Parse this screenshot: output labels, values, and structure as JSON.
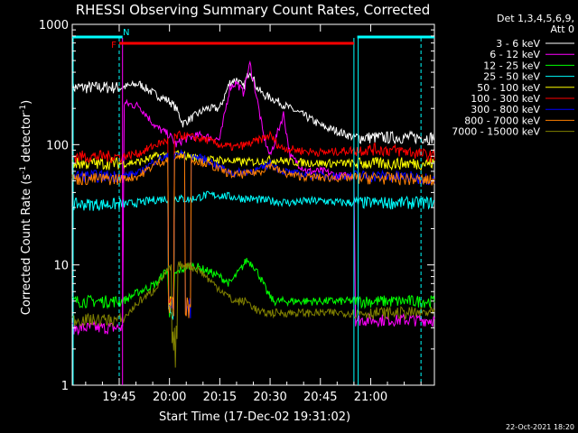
{
  "chart_data": {
    "type": "line",
    "title": "RHESSI Observing Summary Count Rates, Corrected",
    "xlabel": "Start Time (17-Dec-02 19:31:02)",
    "ylabel_main": "Corrected Count Rate (s",
    "ylabel_sup": "-1",
    "ylabel_tail": " detector",
    "ylabel_sup2": "-1",
    "ylabel_end": ")",
    "y_scale": "log",
    "ylim": [
      1,
      1000
    ],
    "xlim_minutes": [
      0,
      108
    ],
    "x_ticks": [
      {
        "m": 14,
        "label": "19:45"
      },
      {
        "m": 29,
        "label": "20:00"
      },
      {
        "m": 44,
        "label": "20:15"
      },
      {
        "m": 59,
        "label": "20:30"
      },
      {
        "m": 74,
        "label": "20:45"
      },
      {
        "m": 89,
        "label": "21:00"
      }
    ],
    "y_ticks": [
      {
        "v": 1,
        "label": "1"
      },
      {
        "v": 10,
        "label": "10"
      },
      {
        "v": 100,
        "label": "100"
      },
      {
        "v": 1000,
        "label": "1000"
      }
    ],
    "legend": {
      "placement": "right",
      "header1": "Det 1,3,4,5,6,9,",
      "header2": "Att 0"
    },
    "flags": [
      {
        "label": "F",
        "color": "#ff0000",
        "start": 14,
        "end": 84
      },
      {
        "label": "N",
        "color": "#00ffff",
        "start": 0,
        "end": 108,
        "gap_start": 15,
        "gap_end": 85
      }
    ],
    "boundaries": [
      {
        "m": 15,
        "color": "#ff00ff"
      },
      {
        "m": 84,
        "color": "#00ffff"
      }
    ],
    "dashed_lines": [
      {
        "m": 14,
        "color": "#00ffff"
      },
      {
        "m": 104,
        "color": "#00ffff"
      }
    ],
    "solid_lines": [
      {
        "m": 0,
        "color": "#00ffff"
      },
      {
        "m": 85,
        "color": "#00ffff"
      }
    ],
    "series": [
      {
        "name": "3 - 6 keV",
        "color": "#ffffff",
        "points": [
          [
            15,
            300
          ],
          [
            20,
            320
          ],
          [
            25,
            260
          ],
          [
            29,
            230
          ],
          [
            31,
            200
          ],
          [
            33,
            150
          ],
          [
            36,
            170
          ],
          [
            40,
            200
          ],
          [
            44,
            200
          ],
          [
            47,
            330
          ],
          [
            49,
            350
          ],
          [
            51,
            300
          ],
          [
            53,
            420
          ],
          [
            55,
            300
          ],
          [
            57,
            260
          ],
          [
            60,
            240
          ],
          [
            65,
            200
          ],
          [
            70,
            170
          ],
          [
            75,
            140
          ],
          [
            79,
            130
          ],
          [
            84,
            115
          ]
        ]
      },
      {
        "name": "6 - 12 keV",
        "color": "#ff00ff",
        "points": [
          [
            0,
            3
          ],
          [
            15,
            3
          ],
          [
            15.5,
            220
          ],
          [
            20,
            210
          ],
          [
            25,
            140
          ],
          [
            29,
            120
          ],
          [
            31,
            100
          ],
          [
            33,
            110
          ],
          [
            38,
            120
          ],
          [
            44,
            110
          ],
          [
            47,
            300
          ],
          [
            49,
            330
          ],
          [
            51,
            270
          ],
          [
            53,
            470
          ],
          [
            55,
            250
          ],
          [
            57,
            120
          ],
          [
            59,
            80
          ],
          [
            61,
            120
          ],
          [
            63,
            180
          ],
          [
            65,
            80
          ],
          [
            70,
            60
          ],
          [
            75,
            60
          ],
          [
            79,
            55
          ],
          [
            84,
            55
          ],
          [
            84.5,
            3.5
          ],
          [
            108,
            3.5
          ]
        ]
      },
      {
        "name": "12 - 25 keV",
        "color": "#00ff00",
        "points": [
          [
            0,
            5
          ],
          [
            15,
            5
          ],
          [
            20,
            6
          ],
          [
            25,
            7
          ],
          [
            28,
            9
          ],
          [
            30,
            8
          ],
          [
            32,
            9
          ],
          [
            36,
            10
          ],
          [
            40,
            9
          ],
          [
            44,
            8
          ],
          [
            47,
            7
          ],
          [
            50,
            9
          ],
          [
            52,
            11
          ],
          [
            54,
            10
          ],
          [
            56,
            8
          ],
          [
            58,
            6
          ],
          [
            60,
            5
          ],
          [
            65,
            5
          ],
          [
            70,
            5
          ],
          [
            75,
            5
          ],
          [
            84,
            5
          ],
          [
            90,
            5
          ],
          [
            108,
            5
          ]
        ]
      },
      {
        "name": "25 - 50 keV",
        "color": "#00ffff",
        "points": [
          [
            0,
            32
          ],
          [
            15,
            32
          ],
          [
            20,
            33
          ],
          [
            25,
            35
          ],
          [
            30,
            36
          ],
          [
            35,
            35
          ],
          [
            40,
            38
          ],
          [
            44,
            38
          ],
          [
            47,
            37
          ],
          [
            50,
            36
          ],
          [
            55,
            35
          ],
          [
            60,
            34
          ],
          [
            65,
            33
          ],
          [
            70,
            34
          ],
          [
            75,
            34
          ],
          [
            80,
            33
          ],
          [
            84,
            33
          ],
          [
            90,
            33
          ],
          [
            100,
            33
          ],
          [
            108,
            33
          ]
        ]
      },
      {
        "name": "50 - 100 keV",
        "color": "#ffff00",
        "points": [
          [
            0,
            70
          ],
          [
            15,
            70
          ],
          [
            20,
            72
          ],
          [
            25,
            80
          ],
          [
            30,
            85
          ],
          [
            35,
            80
          ],
          [
            40,
            75
          ],
          [
            44,
            75
          ],
          [
            50,
            72
          ],
          [
            55,
            72
          ],
          [
            58,
            75
          ],
          [
            62,
            74
          ],
          [
            65,
            72
          ],
          [
            70,
            71
          ],
          [
            75,
            70
          ],
          [
            84,
            70
          ],
          [
            90,
            70
          ],
          [
            100,
            70
          ],
          [
            108,
            70
          ]
        ]
      },
      {
        "name": "100 - 300 keV",
        "color": "#ff0000",
        "points": [
          [
            0,
            80
          ],
          [
            15,
            80
          ],
          [
            20,
            85
          ],
          [
            25,
            100
          ],
          [
            29,
            110
          ],
          [
            32,
            120
          ],
          [
            36,
            115
          ],
          [
            40,
            110
          ],
          [
            44,
            100
          ],
          [
            48,
            95
          ],
          [
            52,
            100
          ],
          [
            56,
            110
          ],
          [
            59,
            120
          ],
          [
            62,
            95
          ],
          [
            65,
            92
          ],
          [
            70,
            88
          ],
          [
            75,
            86
          ],
          [
            84,
            90
          ],
          [
            90,
            92
          ],
          [
            100,
            88
          ],
          [
            108,
            80
          ]
        ]
      },
      {
        "name": "300 - 800 keV",
        "color": "#0000ff",
        "points": [
          [
            0,
            55
          ],
          [
            15,
            55
          ],
          [
            20,
            58
          ],
          [
            25,
            75
          ],
          [
            29,
            80
          ],
          [
            32,
            85
          ],
          [
            36,
            80
          ],
          [
            40,
            75
          ],
          [
            44,
            65
          ],
          [
            48,
            58
          ],
          [
            52,
            60
          ],
          [
            56,
            62
          ],
          [
            59,
            70
          ],
          [
            62,
            62
          ],
          [
            65,
            58
          ],
          [
            70,
            56
          ],
          [
            75,
            55
          ],
          [
            84,
            55
          ],
          [
            90,
            55
          ],
          [
            100,
            54
          ],
          [
            108,
            52
          ]
        ]
      },
      {
        "name": "800 - 7000 keV",
        "color": "#ff8000",
        "points": [
          [
            0,
            52
          ],
          [
            15,
            52
          ],
          [
            20,
            55
          ],
          [
            25,
            70
          ],
          [
            29,
            75
          ],
          [
            32,
            80
          ],
          [
            36,
            75
          ],
          [
            40,
            70
          ],
          [
            44,
            62
          ],
          [
            48,
            56
          ],
          [
            52,
            57
          ],
          [
            56,
            60
          ],
          [
            59,
            68
          ],
          [
            62,
            60
          ],
          [
            65,
            56
          ],
          [
            70,
            54
          ],
          [
            75,
            53
          ],
          [
            84,
            53
          ],
          [
            90,
            53
          ],
          [
            100,
            52
          ],
          [
            108,
            50
          ]
        ]
      },
      {
        "name": "7000 - 15000 keV",
        "color": "#808000",
        "points": [
          [
            0,
            3.5
          ],
          [
            15,
            3.5
          ],
          [
            20,
            5
          ],
          [
            24,
            6
          ],
          [
            27,
            8
          ],
          [
            30,
            10
          ],
          [
            34,
            10
          ],
          [
            38,
            9
          ],
          [
            42,
            7
          ],
          [
            45,
            6
          ],
          [
            48,
            5
          ],
          [
            52,
            5
          ],
          [
            56,
            4
          ],
          [
            60,
            4
          ],
          [
            65,
            4
          ],
          [
            70,
            4
          ],
          [
            75,
            4
          ],
          [
            80,
            4
          ],
          [
            84,
            4
          ],
          [
            90,
            4
          ],
          [
            100,
            4
          ],
          [
            108,
            4
          ]
        ]
      }
    ],
    "dips": [
      {
        "m": 29.5,
        "min": 3.5,
        "series": [
          2,
          3,
          4,
          5,
          6,
          7
        ]
      },
      {
        "m": 30.5,
        "min": 1.2,
        "series": [
          8
        ]
      },
      {
        "m": 34.5,
        "min": 3.5,
        "series": [
          6,
          7
        ]
      }
    ]
  },
  "footer": {
    "timestamp": "22-Oct-2021 18:20"
  }
}
